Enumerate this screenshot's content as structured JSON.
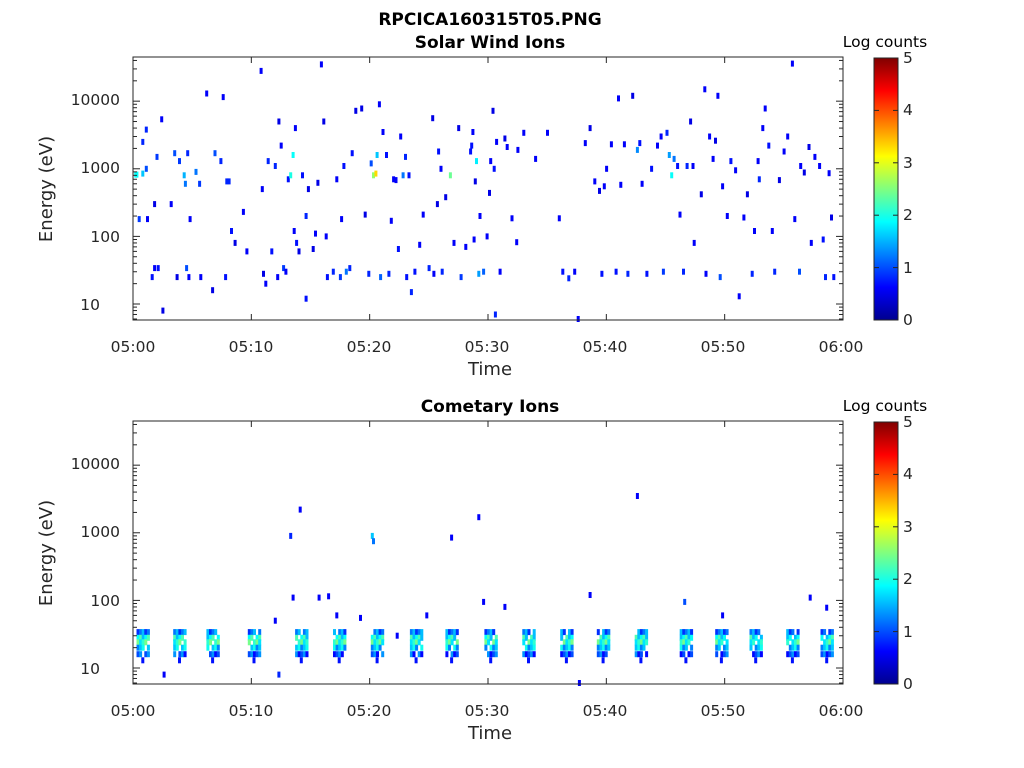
{
  "figure_title": "RPCICA160315T05.PNG",
  "colors": {
    "colormap": "jet",
    "axes": "#262626",
    "background": "#ffffff"
  },
  "chart_data": [
    {
      "type": "heatmap",
      "title": "Solar Wind Ions",
      "xlabel": "Time",
      "ylabel": "Energy (eV)",
      "y_scale": "log",
      "ylim": [
        5.8,
        45000
      ],
      "xlim": [
        "05:00",
        "06:00"
      ],
      "x_ticks": [
        "05:00",
        "05:10",
        "05:20",
        "05:30",
        "05:40",
        "05:50",
        "06:00"
      ],
      "y_ticks": [
        10,
        100,
        1000,
        10000
      ],
      "y_tick_labels": [
        "10",
        "100",
        "1000",
        "10000"
      ],
      "colorbar": {
        "label": "Log counts",
        "min": 0,
        "max": 5,
        "ticks": [
          "0",
          "1",
          "2",
          "3",
          "4",
          "5"
        ]
      },
      "grid": false,
      "cells": [
        [
          0.2,
          820,
          1.9
        ],
        [
          0.3,
          820,
          1.9
        ],
        [
          0.5,
          180,
          0.9
        ],
        [
          0.8,
          850,
          1.6
        ],
        [
          0.8,
          2500,
          0.8
        ],
        [
          1.1,
          3800,
          0.8
        ],
        [
          1.1,
          1000,
          1.0
        ],
        [
          1.2,
          180,
          0.6
        ],
        [
          1.6,
          25,
          0.7
        ],
        [
          1.8,
          34,
          0.6
        ],
        [
          1.8,
          300,
          0.5
        ],
        [
          2.0,
          1500,
          0.9
        ],
        [
          2.1,
          34,
          0.7
        ],
        [
          2.4,
          5400,
          0.6
        ],
        [
          2.5,
          8,
          0.5
        ],
        [
          3.2,
          300,
          0.6
        ],
        [
          3.5,
          1700,
          1.0
        ],
        [
          3.7,
          25,
          0.5
        ],
        [
          3.9,
          1300,
          0.9
        ],
        [
          4.3,
          800,
          1.5
        ],
        [
          4.4,
          600,
          1.2
        ],
        [
          4.5,
          34,
          1.0
        ],
        [
          4.6,
          1700,
          0.8
        ],
        [
          4.7,
          25,
          0.6
        ],
        [
          4.8,
          180,
          0.6
        ],
        [
          5.3,
          900,
          1.2
        ],
        [
          5.6,
          600,
          0.9
        ],
        [
          5.7,
          25,
          0.6
        ],
        [
          6.2,
          13000,
          0.6
        ],
        [
          6.7,
          16,
          0.5
        ],
        [
          6.9,
          1700,
          1.0
        ],
        [
          7.4,
          1300,
          0.8
        ],
        [
          7.6,
          11500,
          0.6
        ],
        [
          7.8,
          25,
          0.7
        ],
        [
          7.9,
          650,
          0.8
        ],
        [
          8.1,
          650,
          0.8
        ],
        [
          8.3,
          120,
          0.7
        ],
        [
          8.6,
          80,
          0.5
        ],
        [
          9.3,
          230,
          0.6
        ],
        [
          9.6,
          60,
          0.6
        ],
        [
          10.8,
          28000,
          0.6
        ],
        [
          10.9,
          500,
          0.6
        ],
        [
          11.0,
          28,
          0.5
        ],
        [
          11.2,
          20,
          0.6
        ],
        [
          11.4,
          1300,
          0.8
        ],
        [
          11.7,
          60,
          0.7
        ],
        [
          12.0,
          1100,
          0.8
        ],
        [
          12.2,
          25,
          0.6
        ],
        [
          12.3,
          5000,
          0.5
        ],
        [
          12.5,
          2200,
          0.6
        ],
        [
          12.7,
          34,
          0.9
        ],
        [
          12.9,
          30,
          0.6
        ],
        [
          13.1,
          700,
          0.7
        ],
        [
          13.3,
          800,
          2.0
        ],
        [
          13.5,
          1600,
          1.9
        ],
        [
          13.6,
          120,
          0.6
        ],
        [
          13.7,
          4000,
          0.6
        ],
        [
          13.8,
          80,
          0.7
        ],
        [
          14.0,
          60,
          0.5
        ],
        [
          14.3,
          800,
          0.7
        ],
        [
          14.6,
          12,
          0.7
        ],
        [
          14.6,
          200,
          0.8
        ],
        [
          14.8,
          500,
          0.5
        ],
        [
          15.2,
          65,
          0.5
        ],
        [
          15.4,
          110,
          0.6
        ],
        [
          15.6,
          620,
          0.5
        ],
        [
          15.9,
          35000,
          0.6
        ],
        [
          16.1,
          5000,
          0.5
        ],
        [
          16.3,
          100,
          0.6
        ],
        [
          16.4,
          25,
          0.7
        ],
        [
          16.9,
          30,
          0.8
        ],
        [
          17.2,
          700,
          0.6
        ],
        [
          17.5,
          25,
          0.9
        ],
        [
          17.6,
          180,
          0.6
        ],
        [
          17.8,
          1100,
          0.7
        ],
        [
          18.0,
          30,
          1.2
        ],
        [
          18.3,
          34,
          0.8
        ],
        [
          18.5,
          1700,
          0.7
        ],
        [
          18.8,
          7200,
          0.5
        ],
        [
          19.3,
          7800,
          0.5
        ],
        [
          19.6,
          210,
          0.5
        ],
        [
          19.9,
          28,
          0.8
        ],
        [
          20.1,
          1200,
          1.0
        ],
        [
          20.3,
          800,
          2.6
        ],
        [
          20.5,
          850,
          3.3
        ],
        [
          20.6,
          1600,
          1.6
        ],
        [
          20.8,
          9000,
          0.6
        ],
        [
          20.9,
          25,
          1.1
        ],
        [
          21.1,
          3500,
          0.6
        ],
        [
          21.4,
          1600,
          0.7
        ],
        [
          21.6,
          28,
          0.8
        ],
        [
          21.8,
          170,
          0.6
        ],
        [
          22.0,
          700,
          0.6
        ],
        [
          22.2,
          680,
          0.6
        ],
        [
          22.4,
          65,
          0.7
        ],
        [
          22.6,
          3000,
          0.6
        ],
        [
          22.8,
          800,
          1.2
        ],
        [
          23.0,
          1500,
          0.8
        ],
        [
          23.1,
          25,
          0.7
        ],
        [
          23.3,
          800,
          0.7
        ],
        [
          23.5,
          15,
          0.8
        ],
        [
          23.8,
          30,
          0.7
        ],
        [
          24.2,
          75,
          0.6
        ],
        [
          24.5,
          210,
          0.6
        ],
        [
          25.0,
          34,
          0.8
        ],
        [
          25.3,
          5600,
          0.5
        ],
        [
          25.4,
          28,
          0.6
        ],
        [
          25.7,
          300,
          0.5
        ],
        [
          25.8,
          1800,
          0.7
        ],
        [
          26.0,
          1000,
          0.6
        ],
        [
          26.1,
          30,
          0.8
        ],
        [
          26.4,
          380,
          0.5
        ],
        [
          26.8,
          800,
          2.4
        ],
        [
          27.1,
          80,
          0.6
        ],
        [
          27.5,
          4000,
          0.5
        ],
        [
          27.7,
          25,
          0.9
        ],
        [
          28.1,
          70,
          0.6
        ],
        [
          28.5,
          1800,
          0.7
        ],
        [
          28.6,
          2200,
          0.7
        ],
        [
          28.7,
          3500,
          0.6
        ],
        [
          28.8,
          90,
          0.6
        ],
        [
          28.9,
          650,
          0.5
        ],
        [
          29.0,
          1300,
          1.8
        ],
        [
          29.2,
          28,
          1.4
        ],
        [
          29.3,
          200,
          0.6
        ],
        [
          29.6,
          30,
          1.1
        ],
        [
          29.9,
          100,
          0.6
        ],
        [
          30.1,
          440,
          0.5
        ],
        [
          30.2,
          1300,
          0.6
        ],
        [
          30.4,
          7200,
          0.5
        ],
        [
          30.5,
          1000,
          0.7
        ],
        [
          30.6,
          7,
          0.8
        ],
        [
          30.7,
          2500,
          0.6
        ],
        [
          31.0,
          30,
          0.6
        ],
        [
          31.4,
          2800,
          0.5
        ],
        [
          31.6,
          2100,
          0.6
        ],
        [
          32.0,
          185,
          0.6
        ],
        [
          32.4,
          82,
          0.6
        ],
        [
          32.5,
          1900,
          0.6
        ],
        [
          33.0,
          3400,
          0.6
        ],
        [
          34.0,
          1400,
          0.6
        ],
        [
          35.0,
          3400,
          0.6
        ],
        [
          36.0,
          185,
          0.6
        ],
        [
          36.3,
          30,
          0.7
        ],
        [
          36.8,
          24,
          0.8
        ],
        [
          37.3,
          30,
          0.6
        ],
        [
          37.6,
          6,
          0.6
        ],
        [
          38.2,
          2400,
          0.6
        ],
        [
          38.6,
          4000,
          0.5
        ],
        [
          39.0,
          650,
          0.6
        ],
        [
          39.4,
          470,
          0.5
        ],
        [
          39.6,
          28,
          0.7
        ],
        [
          39.8,
          550,
          0.6
        ],
        [
          40.0,
          1000,
          0.6
        ],
        [
          40.4,
          2300,
          0.6
        ],
        [
          40.8,
          30,
          0.7
        ],
        [
          41.0,
          11000,
          0.6
        ],
        [
          41.2,
          580,
          0.6
        ],
        [
          41.5,
          2300,
          0.6
        ],
        [
          41.8,
          28,
          0.8
        ],
        [
          42.2,
          12000,
          0.5
        ],
        [
          42.6,
          1900,
          1.3
        ],
        [
          42.8,
          2400,
          0.7
        ],
        [
          43.0,
          600,
          0.6
        ],
        [
          43.4,
          28,
          0.7
        ],
        [
          43.8,
          1000,
          0.7
        ],
        [
          44.3,
          2200,
          0.6
        ],
        [
          44.6,
          3000,
          0.6
        ],
        [
          44.8,
          30,
          0.9
        ],
        [
          45.1,
          3400,
          0.8
        ],
        [
          45.3,
          1600,
          1.4
        ],
        [
          45.5,
          800,
          1.9
        ],
        [
          45.7,
          1400,
          1.2
        ],
        [
          46.0,
          1100,
          0.7
        ],
        [
          46.2,
          210,
          0.6
        ],
        [
          46.5,
          30,
          0.8
        ],
        [
          46.8,
          1100,
          0.8
        ],
        [
          47.1,
          5000,
          0.5
        ],
        [
          47.3,
          1100,
          0.6
        ],
        [
          47.4,
          80,
          0.6
        ],
        [
          48.0,
          420,
          0.5
        ],
        [
          48.3,
          15000,
          0.6
        ],
        [
          48.4,
          28,
          0.6
        ],
        [
          48.7,
          3000,
          0.6
        ],
        [
          49.0,
          1400,
          0.6
        ],
        [
          49.2,
          2600,
          0.5
        ],
        [
          49.4,
          12000,
          0.6
        ],
        [
          49.6,
          25,
          1.0
        ],
        [
          49.8,
          550,
          0.6
        ],
        [
          50.2,
          200,
          0.6
        ],
        [
          50.5,
          1300,
          0.7
        ],
        [
          50.9,
          950,
          0.6
        ],
        [
          51.2,
          13,
          0.6
        ],
        [
          51.6,
          190,
          0.6
        ],
        [
          51.9,
          420,
          0.5
        ],
        [
          52.3,
          28,
          0.8
        ],
        [
          52.5,
          120,
          0.6
        ],
        [
          52.8,
          1300,
          0.6
        ],
        [
          52.9,
          700,
          0.8
        ],
        [
          53.2,
          4000,
          0.6
        ],
        [
          53.4,
          7800,
          0.6
        ],
        [
          53.7,
          2200,
          0.7
        ],
        [
          54.0,
          120,
          0.6
        ],
        [
          54.2,
          30,
          0.8
        ],
        [
          54.6,
          680,
          0.5
        ],
        [
          55.0,
          1800,
          0.6
        ],
        [
          55.3,
          3000,
          0.6
        ],
        [
          55.7,
          36000,
          0.6
        ],
        [
          55.9,
          180,
          0.6
        ],
        [
          56.3,
          30,
          1.0
        ],
        [
          56.4,
          1100,
          0.6
        ],
        [
          56.7,
          880,
          0.5
        ],
        [
          57.1,
          2100,
          0.5
        ],
        [
          57.3,
          80,
          0.6
        ],
        [
          57.6,
          1500,
          0.6
        ],
        [
          58.0,
          1100,
          0.6
        ],
        [
          58.3,
          90,
          0.7
        ],
        [
          58.5,
          25,
          0.8
        ],
        [
          58.8,
          860,
          0.6
        ],
        [
          59.0,
          190,
          0.5
        ],
        [
          59.2,
          25,
          0.7
        ]
      ]
    },
    {
      "type": "heatmap",
      "title": "Cometary Ions",
      "xlabel": "Time",
      "ylabel": "Energy (eV)",
      "y_scale": "log",
      "ylim": [
        5.8,
        45000
      ],
      "xlim": [
        "05:00",
        "06:00"
      ],
      "x_ticks": [
        "05:00",
        "05:10",
        "05:20",
        "05:30",
        "05:40",
        "05:50",
        "06:00"
      ],
      "y_ticks": [
        10,
        100,
        1000,
        10000
      ],
      "y_tick_labels": [
        "10",
        "100",
        "1000",
        "10000"
      ],
      "colorbar": {
        "label": "Log counts",
        "min": 0,
        "max": 5,
        "ticks": [
          "0",
          "1",
          "2",
          "3",
          "4",
          "5"
        ]
      },
      "grid": false,
      "bursts": [
        0.4,
        3.5,
        6.3,
        9.8,
        13.8,
        17.0,
        20.2,
        23.5,
        26.5,
        29.8,
        33.0,
        36.2,
        39.3,
        42.5,
        46.3,
        49.3,
        52.2,
        55.3,
        58.2
      ],
      "extras": [
        [
          2.6,
          8,
          0.6
        ],
        [
          12.0,
          50,
          0.6
        ],
        [
          12.3,
          8,
          0.8
        ],
        [
          13.3,
          900,
          0.8
        ],
        [
          13.5,
          110,
          0.6
        ],
        [
          14.1,
          2200,
          0.6
        ],
        [
          15.7,
          110,
          0.6
        ],
        [
          16.5,
          115,
          0.6
        ],
        [
          17.2,
          60,
          0.6
        ],
        [
          19.2,
          55,
          0.6
        ],
        [
          20.2,
          900,
          1.6
        ],
        [
          20.3,
          750,
          1.2
        ],
        [
          22.3,
          30,
          0.6
        ],
        [
          24.8,
          60,
          0.6
        ],
        [
          26.9,
          850,
          0.6
        ],
        [
          29.2,
          1700,
          0.6
        ],
        [
          29.6,
          95,
          0.6
        ],
        [
          31.4,
          80,
          0.6
        ],
        [
          37.7,
          6,
          0.6
        ],
        [
          38.6,
          120,
          0.6
        ],
        [
          42.6,
          3500,
          0.6
        ],
        [
          46.6,
          95,
          1.0
        ],
        [
          49.8,
          60,
          0.6
        ],
        [
          57.2,
          110,
          0.6
        ],
        [
          58.6,
          78,
          0.6
        ]
      ]
    }
  ]
}
